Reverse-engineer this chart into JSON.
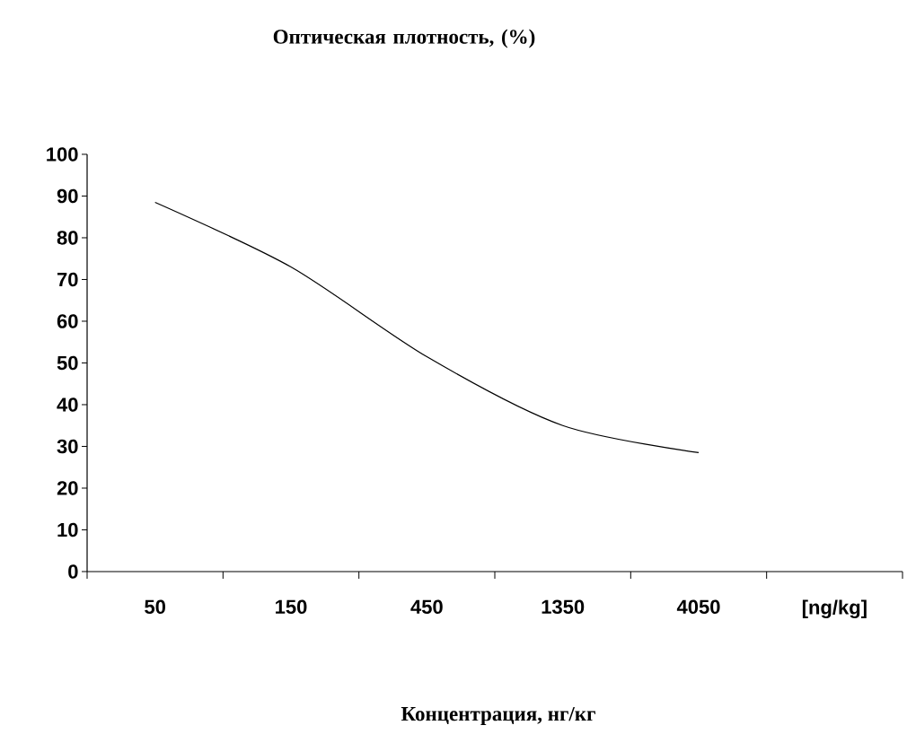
{
  "chart_data": {
    "type": "line",
    "ylabel": "Оптическая плотность, (%)",
    "xlabel": "Концентрация, нг/кг",
    "categories": [
      "50",
      "150",
      "450",
      "1350",
      "4050",
      "[ng/kg]"
    ],
    "values": [
      88.5,
      73,
      51.5,
      35,
      28.5,
      null
    ],
    "color": "#000000",
    "ylim": [
      0,
      100
    ],
    "yticks": [
      0,
      10,
      20,
      30,
      40,
      50,
      60,
      70,
      80,
      90,
      100
    ],
    "grid": false,
    "marker": "none",
    "line_style": "solid"
  }
}
